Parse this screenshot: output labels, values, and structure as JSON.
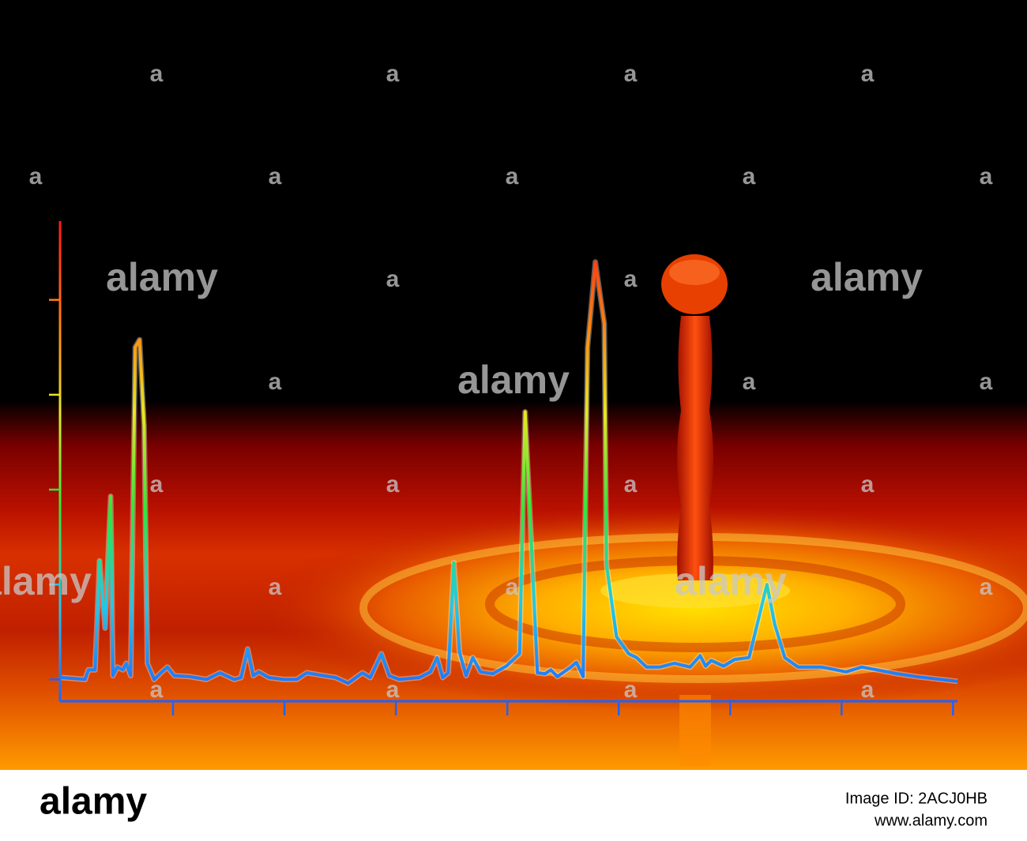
{
  "chart_data": {
    "type": "line",
    "x": [
      0,
      0.21,
      0.24,
      0.3,
      0.34,
      0.39,
      0.44,
      0.46,
      0.5,
      0.55,
      0.58,
      0.62,
      0.66,
      0.7,
      0.74,
      0.77,
      0.83,
      0.9,
      0.95,
      1.01,
      1.15,
      1.3,
      1.42,
      1.55,
      1.61,
      1.67,
      1.72,
      1.77,
      1.86,
      1.99,
      2.11,
      2.2,
      2.35,
      2.46,
      2.57,
      2.7,
      2.77,
      2.87,
      2.94,
      3.03,
      3.21,
      3.31,
      3.37,
      3.42,
      3.47,
      3.52,
      3.57,
      3.63,
      3.69,
      3.76,
      3.87,
      3.99,
      4.11,
      4.16,
      4.27,
      4.34,
      4.39,
      4.45,
      4.57,
      4.62,
      4.68,
      4.72,
      4.79,
      4.87,
      4.89,
      4.98,
      5.09,
      5.16,
      5.25,
      5.37,
      5.5,
      5.64,
      5.73,
      5.78,
      5.83,
      5.94,
      6.04,
      6.17,
      6.33,
      6.4,
      6.49,
      6.61,
      6.82,
      7.04,
      7.18,
      7.32,
      7.5,
      7.67,
      8.04
    ],
    "values": [
      0.02,
      0,
      0.1,
      0.1,
      1.25,
      0.54,
      1.93,
      0.04,
      0.13,
      0.1,
      0.17,
      0.04,
      3.5,
      3.58,
      2.67,
      0.17,
      0,
      0.08,
      0.13,
      0.04,
      0.03,
      0,
      0.07,
      0,
      0.02,
      0.32,
      0.04,
      0.08,
      0.02,
      0,
      0,
      0.07,
      0.04,
      0.02,
      -0.04,
      0.07,
      0.02,
      0.27,
      0.04,
      0,
      0.02,
      0.08,
      0.23,
      0.02,
      0.07,
      1.23,
      0.29,
      0.04,
      0.23,
      0.08,
      0.06,
      0.14,
      0.27,
      2.82,
      0.07,
      0.06,
      0.1,
      0.03,
      0.13,
      0.18,
      0.03,
      3.5,
      4.4,
      3.75,
      1.21,
      0.45,
      0.27,
      0.23,
      0.13,
      0.13,
      0.17,
      0.13,
      0.25,
      0.14,
      0.2,
      0.14,
      0.21,
      0.23,
      1.0,
      0.58,
      0.23,
      0.13,
      0.13,
      0.08,
      0.13,
      0.1,
      0.06,
      0.03,
      -0.02
    ],
    "gradient": [
      "#1c64ff",
      "#22c8e8",
      "#2ee83a",
      "#e8e820",
      "#ff7a10",
      "#ff1818"
    ],
    "xlim": [
      0,
      8.04
    ],
    "xticks": [
      1,
      2,
      3,
      4,
      5,
      6,
      7,
      8
    ],
    "ylim": [
      -0.23,
      4.83
    ],
    "yticks": [
      0,
      1,
      2,
      3,
      4
    ]
  },
  "watermark": {
    "logo": "alamy",
    "letter": "a"
  },
  "footer": {
    "logo": "alamy",
    "image_id": "Image ID: 2ACJ0HB",
    "url": "www.alamy.com"
  }
}
